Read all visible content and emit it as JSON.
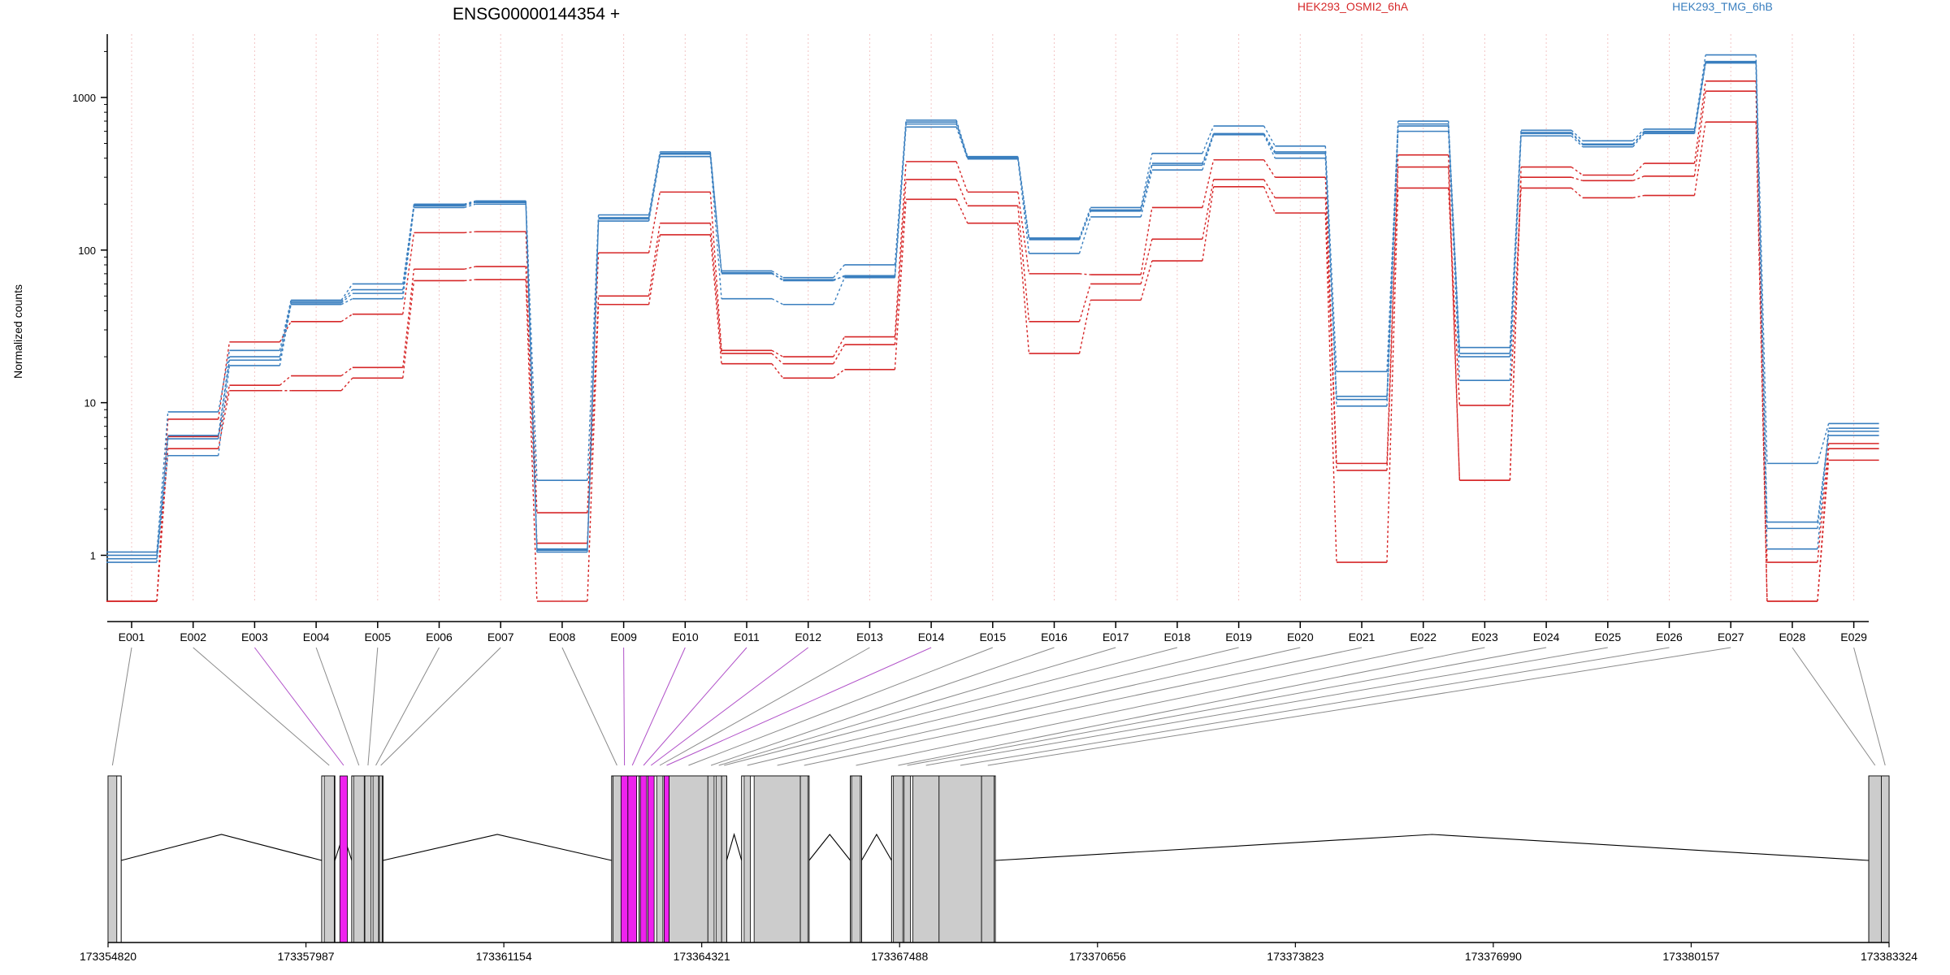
{
  "chart_data": {
    "type": "line",
    "title": "ENSG00000144354 +",
    "ylabel": "Normalized counts",
    "yscale": "log",
    "ylim": [
      0.5,
      2600
    ],
    "yticks": [
      1,
      10,
      100,
      1000
    ],
    "ytick_labels": [
      "1",
      "10",
      "100",
      "1000"
    ],
    "categories": [
      "E001",
      "E002",
      "E003",
      "E004",
      "E005",
      "E006",
      "E007",
      "E008",
      "E009",
      "E010",
      "E011",
      "E012",
      "E013",
      "E014",
      "E015",
      "E016",
      "E017",
      "E018",
      "E019",
      "E020",
      "E021",
      "E022",
      "E023",
      "E024",
      "E025",
      "E026",
      "E027",
      "E028",
      "E029"
    ],
    "groups": [
      {
        "name": "HEK293_OSMI2_6hA",
        "color": "#d62728"
      },
      {
        "name": "HEK293_TMG_6hB",
        "color": "#3a7fbf"
      }
    ],
    "series": [
      {
        "group": 0,
        "values": [
          0.5,
          7.8,
          25,
          34,
          38,
          130,
          132,
          1.9,
          96,
          240,
          22,
          20,
          27,
          380,
          240,
          70,
          69,
          190,
          390,
          300,
          4.0,
          420,
          3.1,
          350,
          310,
          370,
          1280,
          0.9,
          5.4
        ]
      },
      {
        "group": 0,
        "values": [
          0.5,
          6.0,
          13,
          15,
          17,
          75,
          78,
          1.2,
          50,
          150,
          21,
          18,
          24,
          290,
          195,
          34,
          60,
          118,
          290,
          220,
          3.6,
          350,
          3.1,
          300,
          285,
          305,
          1100,
          0.5,
          5.0
        ]
      },
      {
        "group": 0,
        "values": [
          0.5,
          5.0,
          12,
          12,
          14.5,
          63,
          64,
          0.5,
          44,
          126,
          18,
          14.5,
          16.5,
          215,
          150,
          21,
          47,
          85,
          260,
          175,
          0.9,
          255,
          9.6,
          255,
          220,
          228,
          690,
          0.5,
          4.2
        ]
      },
      {
        "group": 1,
        "values": [
          1.05,
          8.7,
          22,
          47,
          60,
          200,
          210,
          3.1,
          170,
          440,
          73,
          66,
          80,
          710,
          410,
          120,
          190,
          430,
          650,
          480,
          16,
          700,
          23,
          610,
          520,
          620,
          1900,
          4.0,
          7.3
        ]
      },
      {
        "group": 1,
        "values": [
          1.0,
          6.1,
          20,
          45,
          52,
          195,
          205,
          1.1,
          163,
          425,
          71,
          63,
          68,
          690,
          405,
          118,
          183,
          370,
          580,
          440,
          11,
          670,
          21,
          590,
          495,
          600,
          1720,
          1.1,
          6.8
        ]
      },
      {
        "group": 1,
        "values": [
          0.95,
          4.5,
          17.5,
          44,
          48,
          190,
          200,
          1.05,
          155,
          410,
          48,
          44,
          66,
          640,
          395,
          95,
          165,
          335,
          570,
          400,
          9.5,
          600,
          14,
          560,
          475,
          580,
          1680,
          1.65,
          6.1
        ]
      },
      {
        "group": 1,
        "values": [
          0.9,
          5.8,
          19,
          46,
          55,
          198,
          208,
          1.08,
          160,
          430,
          70,
          64,
          67,
          670,
          400,
          117,
          180,
          360,
          575,
          430,
          10.5,
          650,
          20,
          580,
          490,
          590,
          1700,
          1.5,
          6.5
        ]
      }
    ],
    "highlighted_exons": [
      "E003",
      "E009",
      "E010",
      "E011",
      "E012",
      "E014"
    ],
    "gene_model": {
      "coordinate_ticks": [
        "173354820",
        "173357987",
        "173361154",
        "173364321",
        "173367488",
        "173370656",
        "173373823",
        "173376990",
        "173380157",
        "173383324"
      ],
      "coord_start": 173354820,
      "coord_end": 173383324,
      "highlight_color": "#ee22ee",
      "exon_color": "#cccccc"
    }
  }
}
